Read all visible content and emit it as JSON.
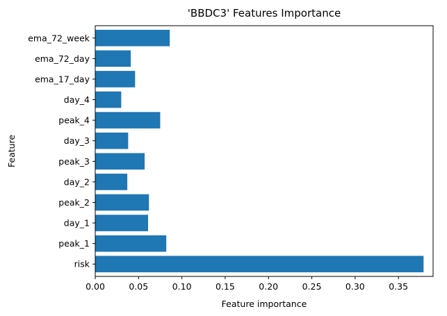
{
  "chart_data": {
    "type": "bar",
    "orientation": "horizontal",
    "title": "'BBDC3' Features Importance",
    "xlabel": "Feature importance",
    "ylabel": "Feature",
    "categories": [
      "risk",
      "peak_1",
      "day_1",
      "peak_2",
      "day_2",
      "peak_3",
      "day_3",
      "peak_4",
      "day_4",
      "ema_17_day",
      "ema_72_day",
      "ema_72_week"
    ],
    "values": [
      0.379,
      0.082,
      0.061,
      0.062,
      0.037,
      0.057,
      0.038,
      0.075,
      0.03,
      0.046,
      0.041,
      0.086
    ],
    "xlim": [
      0,
      0.39
    ],
    "xticks": [
      "0.00",
      "0.05",
      "0.10",
      "0.15",
      "0.20",
      "0.25",
      "0.30",
      "0.35"
    ],
    "grid": false,
    "bar_color": "#1f77b4"
  }
}
